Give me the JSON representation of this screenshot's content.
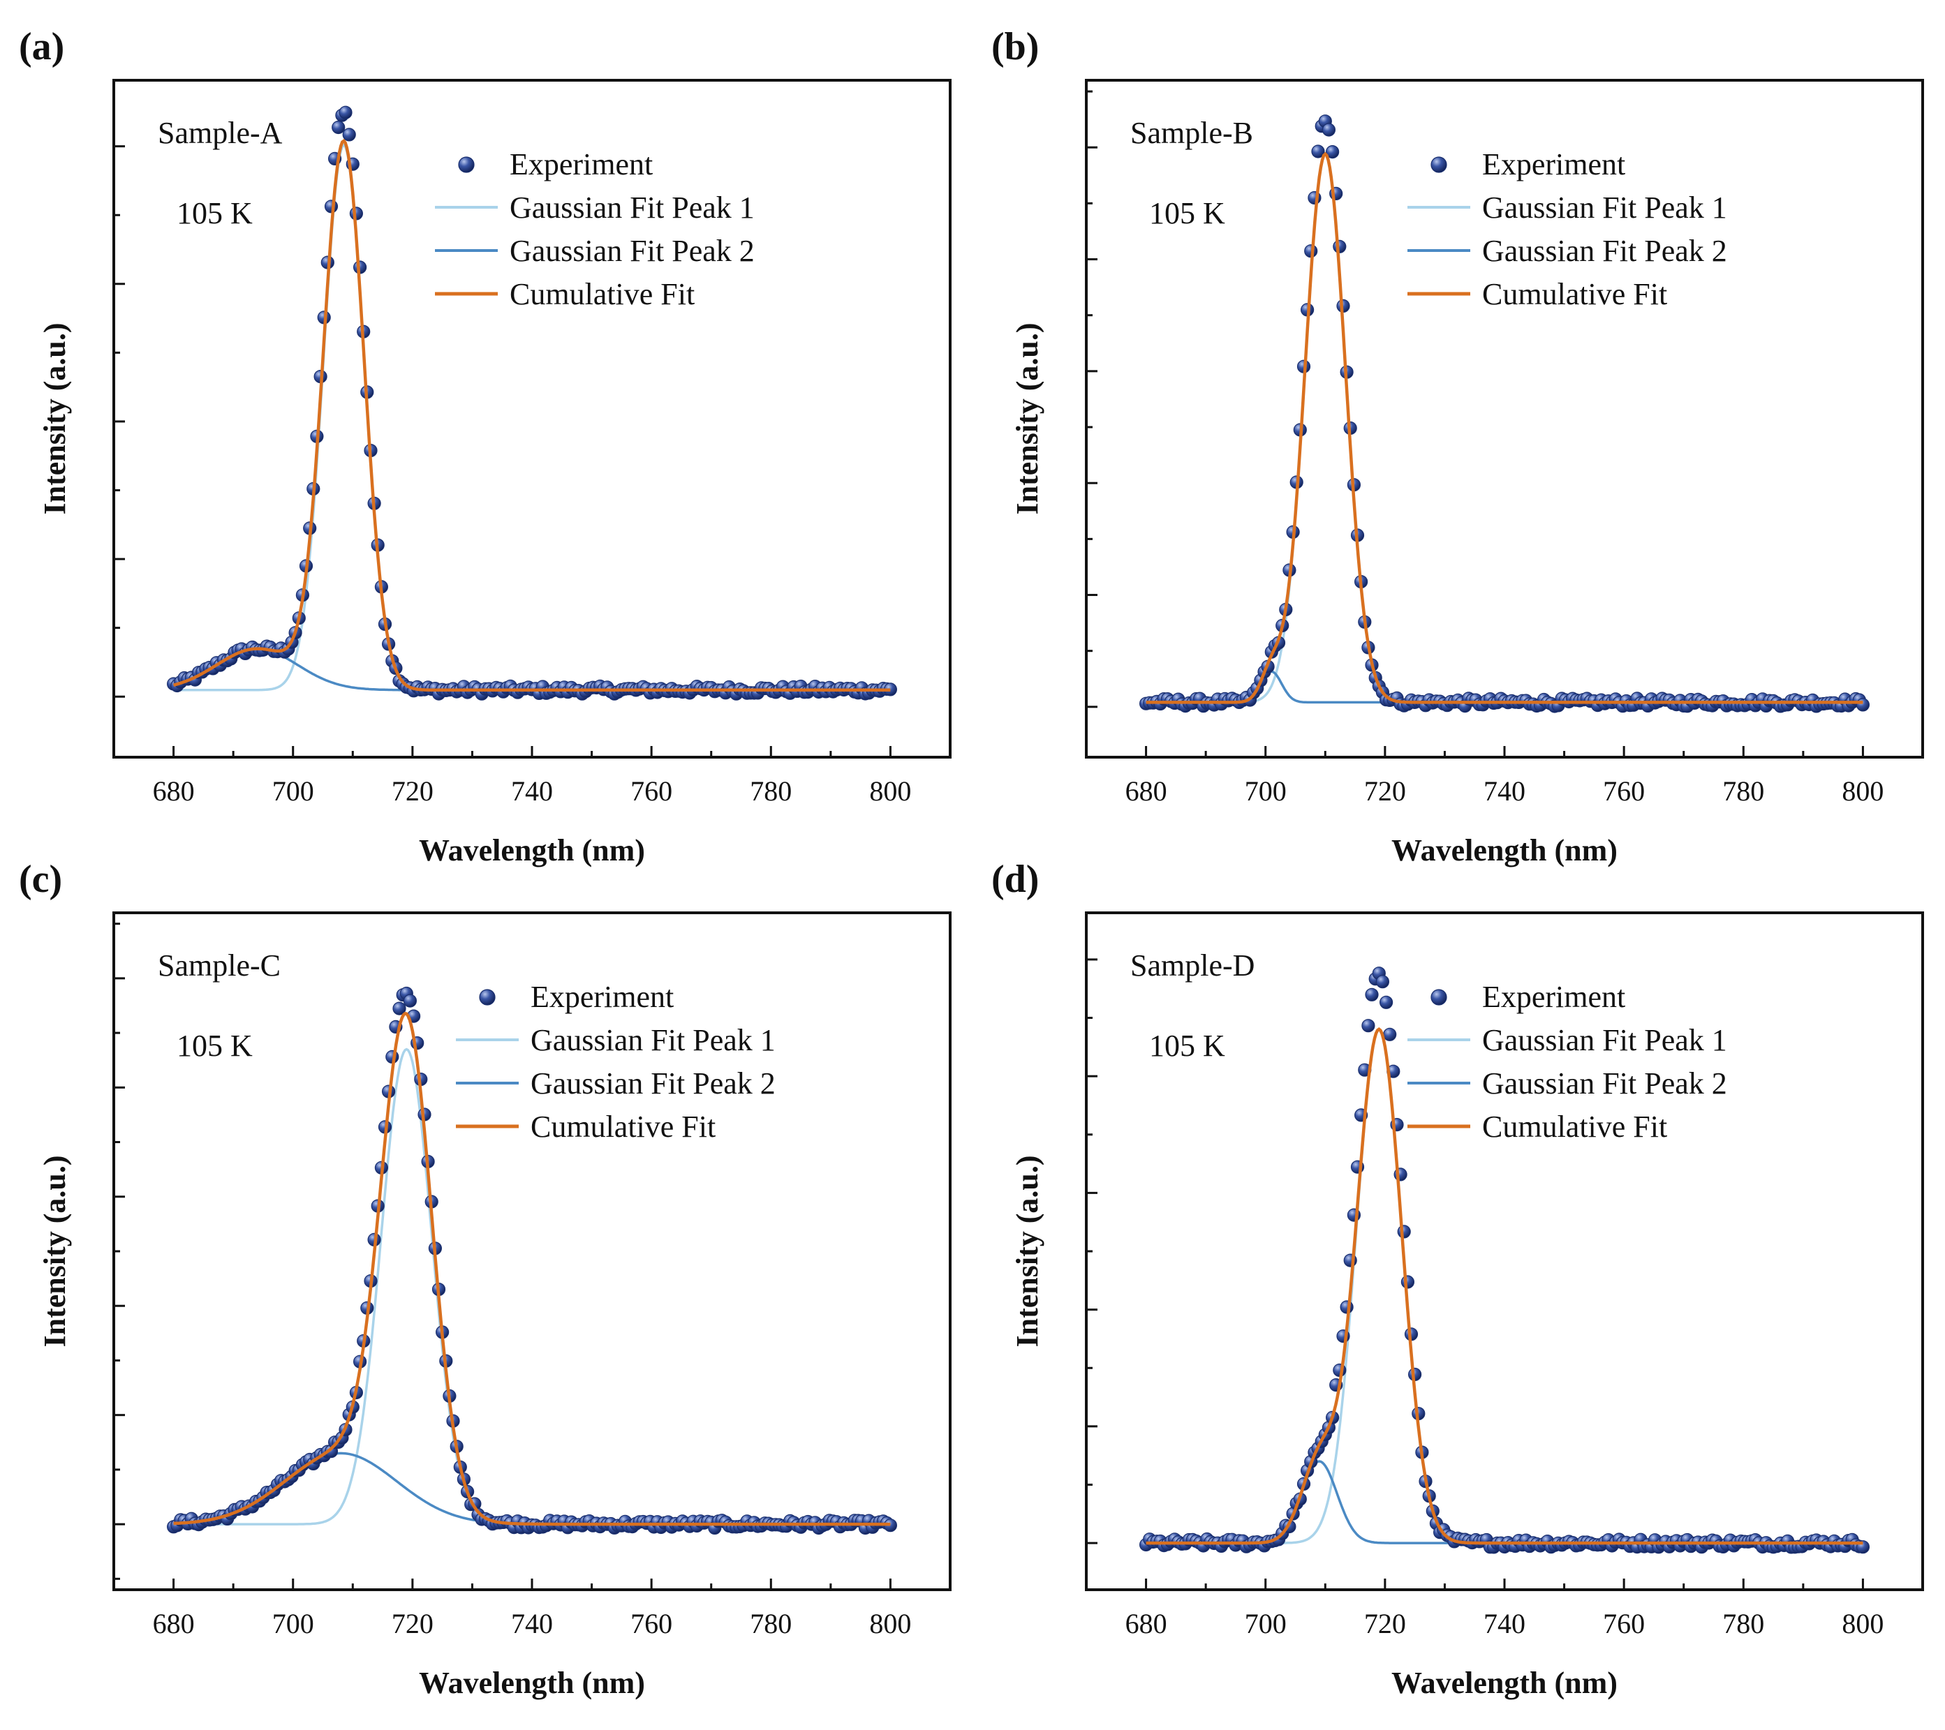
{
  "colors": {
    "experiment": "#1a2f6e",
    "experiment_highlight": "#8fa3d6",
    "gaussian_peak_1": "#a9d3ea",
    "gaussian_peak_2": "#4b8ac4",
    "cumulative_fit": "#d9701f",
    "axis": "#111111"
  },
  "chart_data": [
    {
      "type": "scatter+line",
      "panel": "(a)",
      "sample_label": "Sample-A",
      "temperature_label": "105 K",
      "xlabel": "Wavelength (nm)",
      "ylabel": "Intensity (a.u.)",
      "xlim": [
        670,
        810
      ],
      "ylim": [
        -0.11,
        1.12
      ],
      "x_ticks": [
        680,
        700,
        720,
        740,
        760,
        780,
        800
      ],
      "x_tick_labels": [
        "680",
        "700",
        "720",
        "740",
        "760",
        "780",
        "800"
      ],
      "y_major_ticks": [
        0,
        0.25,
        0.5,
        0.75,
        1.0
      ],
      "y_tick_labels_shown": false,
      "x_range": [
        680,
        800
      ],
      "baseline": 0.012,
      "peaks": [
        {
          "name": "Gaussian Fit Peak 1",
          "center": 708.5,
          "fwhm": 8.0,
          "amplitude": 0.99
        },
        {
          "name": "Gaussian Fit Peak 2",
          "center": 694,
          "fwhm": 16.0,
          "amplitude": 0.075
        }
      ],
      "experiment_peak_value": 1.065,
      "legend": [
        "Experiment",
        "Gaussian Fit Peak 1",
        "Gaussian Fit Peak 2",
        "Cumulative Fit"
      ]
    },
    {
      "type": "scatter+line",
      "panel": "(b)",
      "sample_label": "Sample-B",
      "temperature_label": "105 K",
      "xlabel": "Wavelength (nm)",
      "ylabel": "Intensity (a.u.)",
      "xlim": [
        670,
        810
      ],
      "ylim": [
        -0.09,
        1.12
      ],
      "x_ticks": [
        680,
        700,
        720,
        740,
        760,
        780,
        800
      ],
      "x_tick_labels": [
        "680",
        "700",
        "720",
        "740",
        "760",
        "780",
        "800"
      ],
      "y_major_ticks": [
        0,
        0.2,
        0.4,
        0.6,
        0.8,
        1.0
      ],
      "y_tick_labels_shown": false,
      "x_range": [
        680,
        800
      ],
      "baseline": 0.008,
      "peaks": [
        {
          "name": "Gaussian Fit Peak 1",
          "center": 710,
          "fwhm": 8.0,
          "amplitude": 0.98
        },
        {
          "name": "Gaussian Fit Peak 2",
          "center": 701,
          "fwhm": 4.0,
          "amplitude": 0.055
        }
      ],
      "experiment_peak_value": 1.05,
      "legend": [
        "Experiment",
        "Gaussian Fit Peak 1",
        "Gaussian Fit Peak 2",
        "Cumulative Fit"
      ]
    },
    {
      "type": "scatter+line",
      "panel": "(c)",
      "sample_label": "Sample-C",
      "temperature_label": "105 K",
      "xlabel": "Wavelength (nm)",
      "ylabel": "Intensity (a.u.)",
      "xlim": [
        670,
        810
      ],
      "ylim": [
        -0.12,
        1.12
      ],
      "x_ticks": [
        680,
        700,
        720,
        740,
        760,
        780,
        800
      ],
      "x_tick_labels": [
        "680",
        "700",
        "720",
        "740",
        "760",
        "780",
        "800"
      ],
      "y_major_ticks": [
        0,
        0.2,
        0.4,
        0.6,
        0.8,
        1.0
      ],
      "y_tick_labels_shown": false,
      "x_range": [
        680,
        800
      ],
      "baseline": 0.0,
      "peaks": [
        {
          "name": "Gaussian Fit Peak 1",
          "center": 719,
          "fwhm": 10.0,
          "amplitude": 0.87
        },
        {
          "name": "Gaussian Fit Peak 2",
          "center": 708,
          "fwhm": 22.0,
          "amplitude": 0.13
        }
      ],
      "experiment_peak_value": 0.97,
      "legend": [
        "Experiment",
        "Gaussian Fit Peak 1",
        "Gaussian Fit Peak 2",
        "Cumulative Fit"
      ]
    },
    {
      "type": "scatter+line",
      "panel": "(d)",
      "sample_label": "Sample-D",
      "temperature_label": "105 K",
      "xlabel": "Wavelength (nm)",
      "ylabel": "Intensity (a.u.)",
      "xlim": [
        670,
        810
      ],
      "ylim": [
        -0.08,
        1.08
      ],
      "x_ticks": [
        680,
        700,
        720,
        740,
        760,
        780,
        800
      ],
      "x_tick_labels": [
        "680",
        "700",
        "720",
        "740",
        "760",
        "780",
        "800"
      ],
      "y_major_ticks": [
        0,
        0.2,
        0.4,
        0.6,
        0.8,
        1.0
      ],
      "y_tick_labels_shown": false,
      "x_range": [
        680,
        800
      ],
      "baseline": 0.0,
      "peaks": [
        {
          "name": "Gaussian Fit Peak 1",
          "center": 719,
          "fwhm": 9.0,
          "amplitude": 0.88
        },
        {
          "name": "Gaussian Fit Peak 2",
          "center": 709,
          "fwhm": 7.0,
          "amplitude": 0.14
        }
      ],
      "experiment_peak_value": 0.98,
      "legend": [
        "Experiment",
        "Gaussian Fit Peak 1",
        "Gaussian Fit Peak 2",
        "Cumulative Fit"
      ]
    }
  ]
}
